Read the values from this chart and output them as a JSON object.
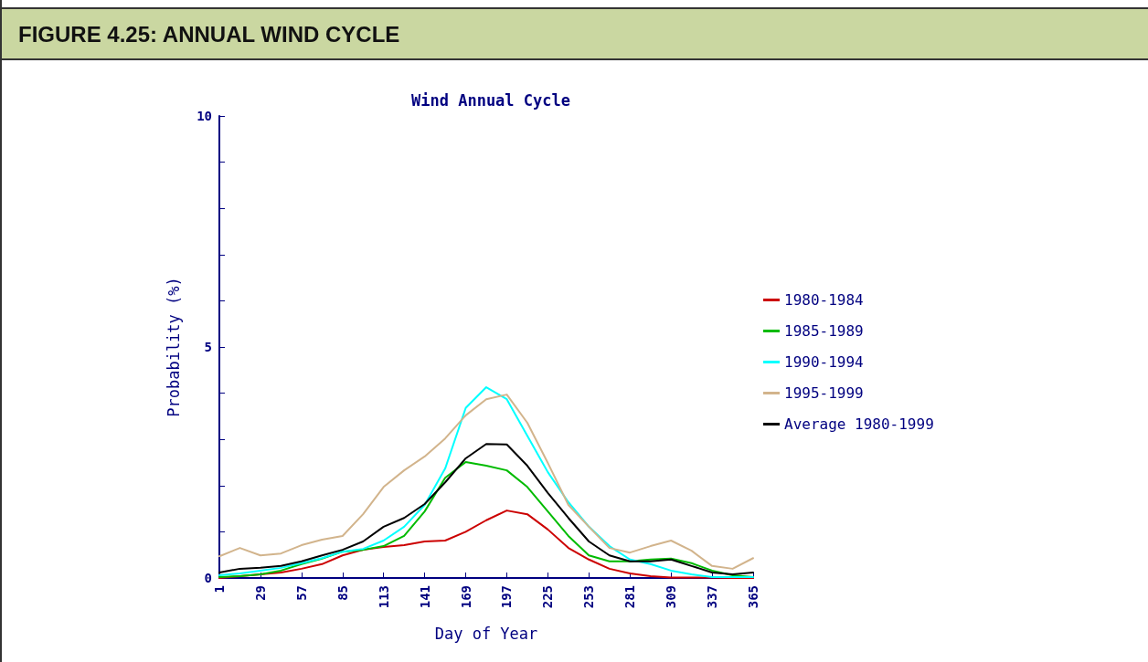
{
  "chart_data": {
    "type": "line",
    "title": "FIGURE 4.25: ANNUAL WIND CYCLE",
    "subtitle": "Wind Annual Cycle",
    "xlabel": "Day of Year",
    "ylabel": "Probability (%)",
    "x": [
      1,
      15,
      29,
      43,
      57,
      71,
      85,
      99,
      113,
      127,
      141,
      155,
      169,
      183,
      197,
      211,
      225,
      239,
      253,
      267,
      281,
      295,
      309,
      323,
      337,
      351,
      365
    ],
    "series": [
      {
        "name": "1980-1984",
        "color": "#cc0000",
        "values": [
          0,
          0.04,
          0.08,
          0.12,
          0.2,
          0.3,
          0.49,
          0.61,
          0.67,
          0.71,
          0.79,
          0.81,
          1.0,
          1.25,
          1.46,
          1.38,
          1.05,
          0.65,
          0.4,
          0.2,
          0.1,
          0.04,
          0.01,
          0.01,
          0.01,
          0,
          0
        ]
      },
      {
        "name": "1985-1989",
        "color": "#00bb00",
        "values": [
          0.02,
          0.04,
          0.08,
          0.16,
          0.3,
          0.42,
          0.57,
          0.61,
          0.69,
          0.91,
          1.44,
          2.17,
          2.51,
          2.43,
          2.33,
          1.97,
          1.44,
          0.91,
          0.49,
          0.36,
          0.36,
          0.4,
          0.42,
          0.32,
          0.16,
          0.06,
          0.02
        ]
      },
      {
        "name": "1990-1994",
        "color": "#00ffff",
        "values": [
          0.06,
          0.1,
          0.16,
          0.22,
          0.32,
          0.43,
          0.57,
          0.63,
          0.81,
          1.11,
          1.58,
          2.37,
          3.68,
          4.13,
          3.87,
          3.08,
          2.29,
          1.64,
          1.11,
          0.69,
          0.4,
          0.3,
          0.16,
          0.08,
          0.02,
          0.02,
          0.02
        ]
      },
      {
        "name": "1995-1999",
        "color": "#d2b48c",
        "values": [
          0.47,
          0.65,
          0.49,
          0.53,
          0.71,
          0.83,
          0.91,
          1.38,
          1.97,
          2.33,
          2.63,
          3.02,
          3.52,
          3.87,
          3.97,
          3.36,
          2.49,
          1.58,
          1.11,
          0.65,
          0.55,
          0.69,
          0.81,
          0.59,
          0.26,
          0.2,
          0.43
        ]
      },
      {
        "name": "Average 1980-1999",
        "color": "#000000",
        "values": [
          0.12,
          0.2,
          0.22,
          0.26,
          0.36,
          0.49,
          0.61,
          0.79,
          1.11,
          1.3,
          1.6,
          2.07,
          2.59,
          2.9,
          2.89,
          2.43,
          1.84,
          1.3,
          0.79,
          0.49,
          0.36,
          0.36,
          0.4,
          0.26,
          0.12,
          0.08,
          0.12
        ]
      }
    ],
    "xlim": [
      1,
      365
    ],
    "xticks": [
      1,
      29,
      57,
      85,
      113,
      141,
      169,
      197,
      225,
      253,
      281,
      309,
      337,
      365
    ],
    "ylim": [
      0,
      10
    ],
    "yticks": [
      0,
      {
        "value": 1,
        "label": null
      },
      {
        "value": 2,
        "label": null
      },
      {
        "value": 3,
        "label": null
      },
      {
        "value": 4,
        "label": null
      },
      5,
      {
        "value": 6,
        "label": null
      },
      {
        "value": 7,
        "label": null
      },
      {
        "value": 8,
        "label": null
      },
      {
        "value": 9,
        "label": null
      },
      10
    ],
    "legend": "right"
  }
}
